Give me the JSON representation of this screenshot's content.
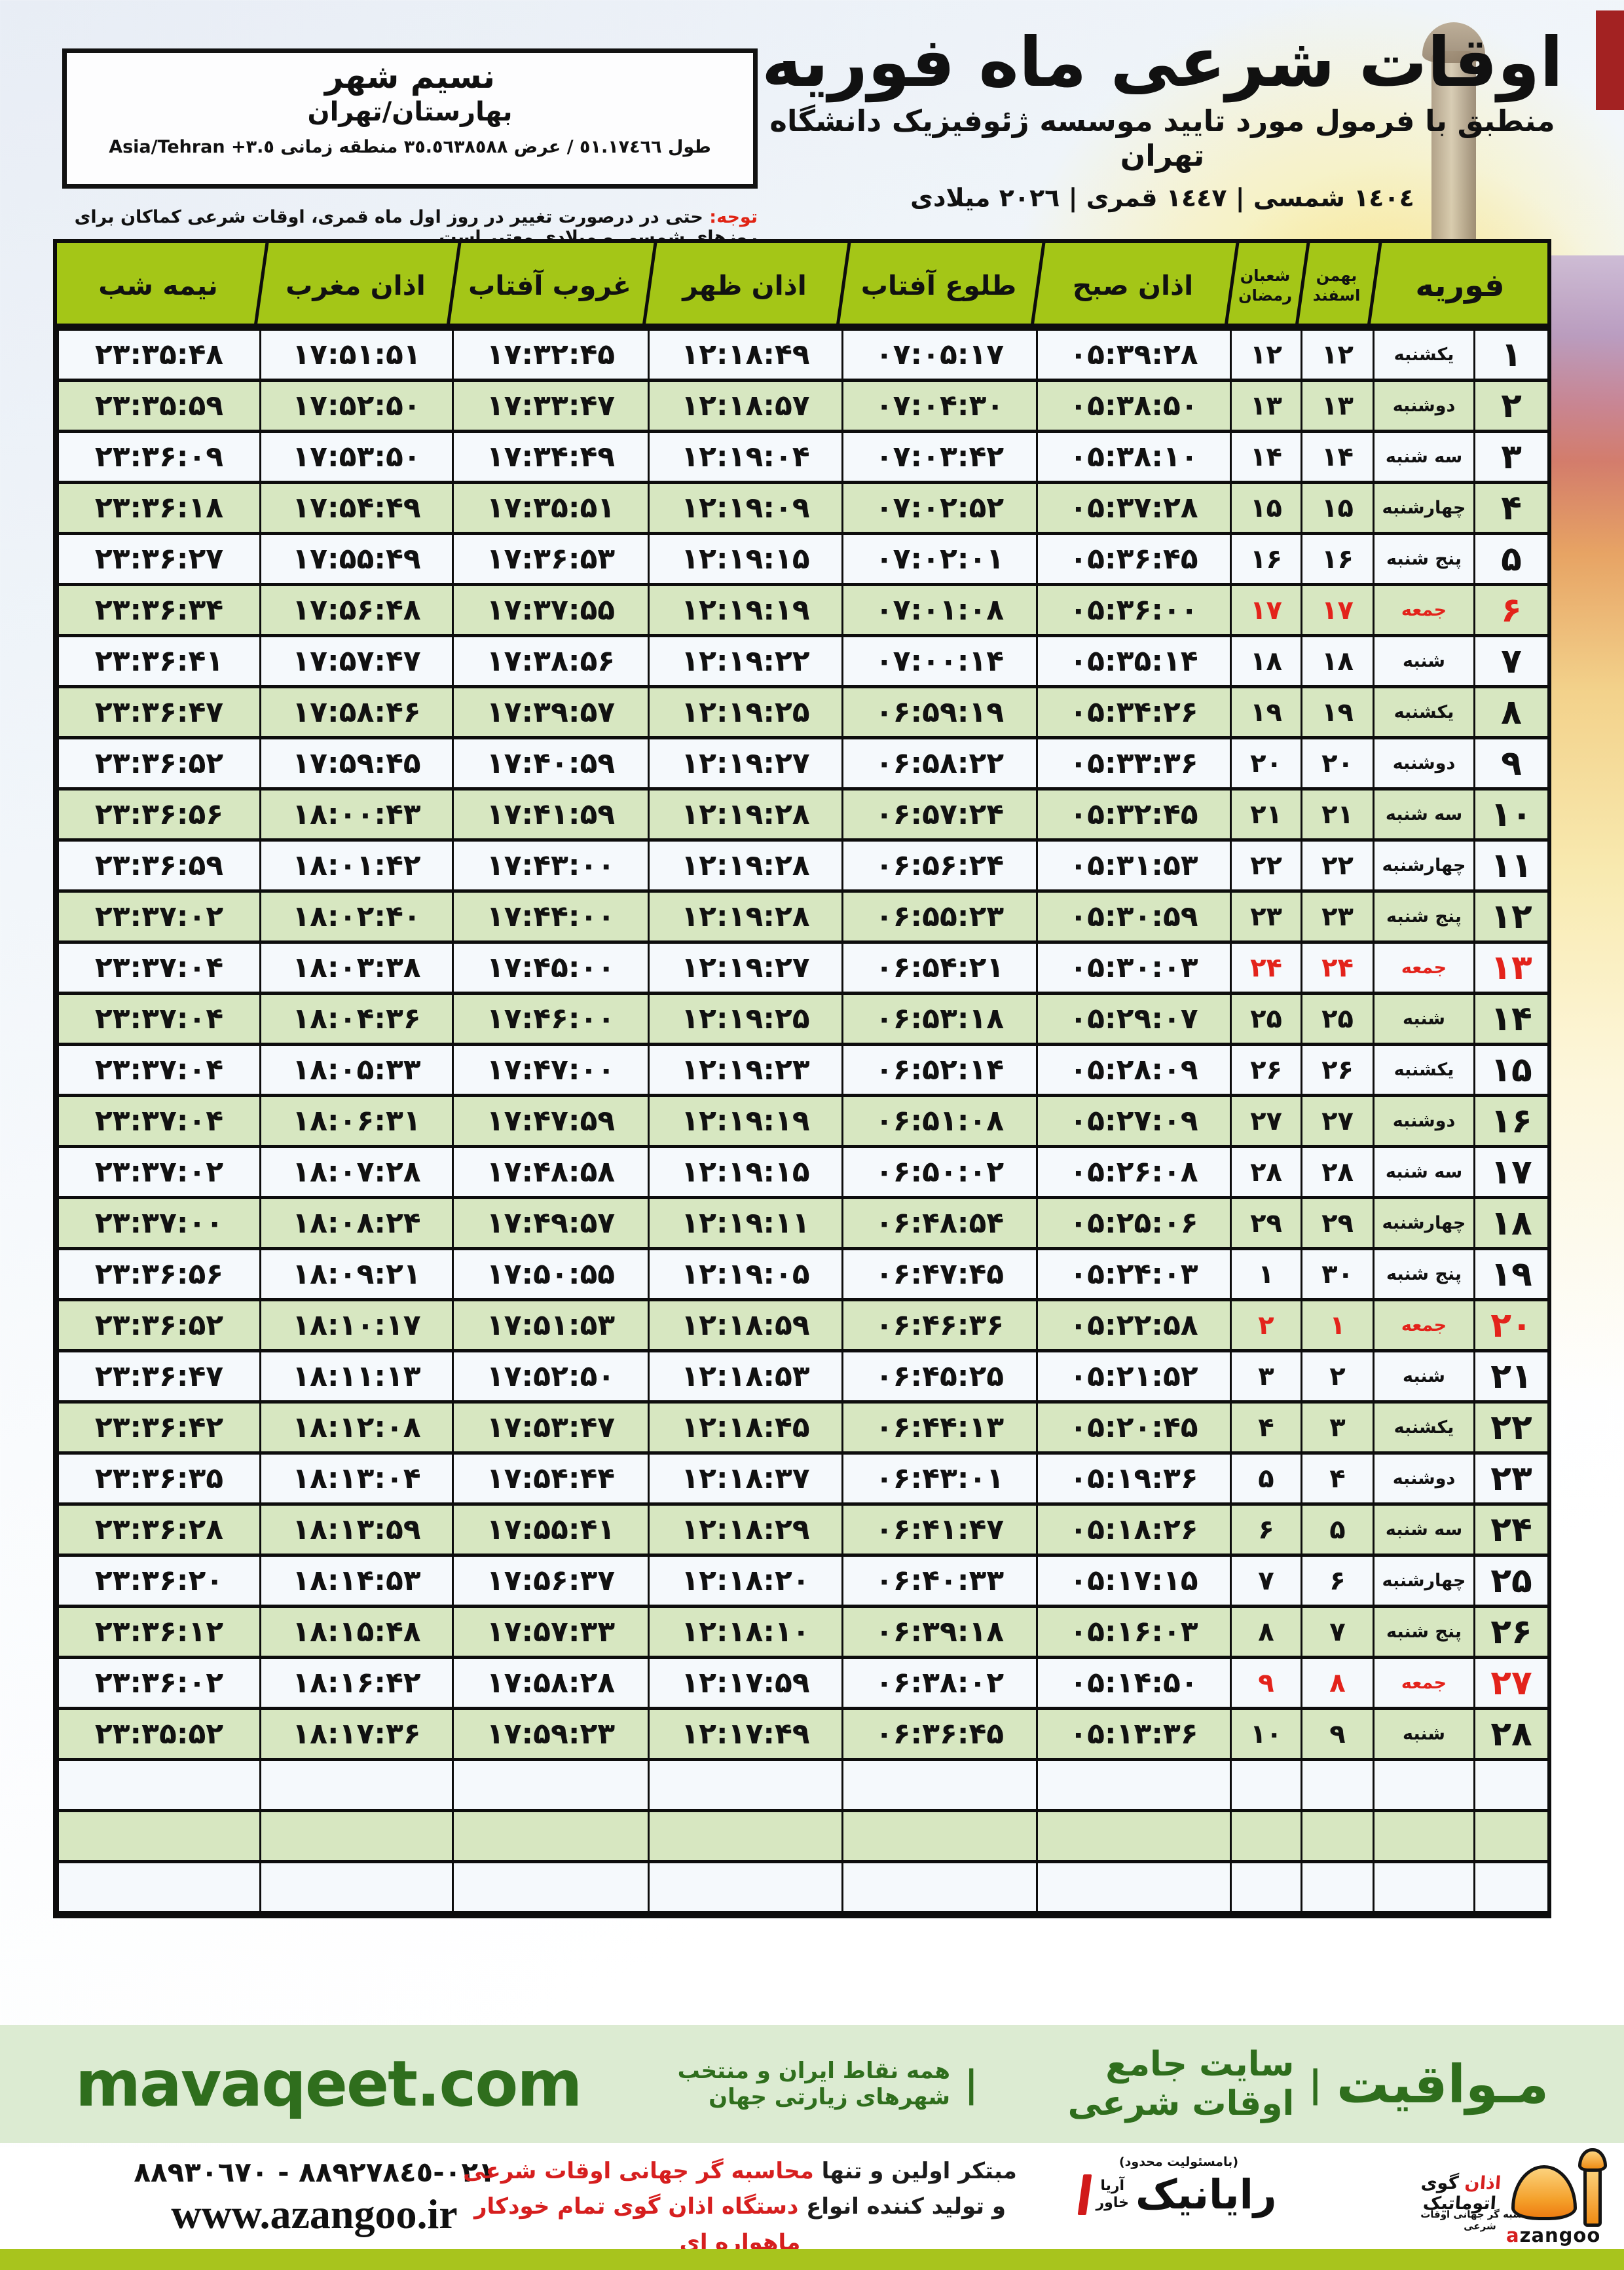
{
  "colors": {
    "header_green": "#a4c617",
    "row_green": "#d7e7c1",
    "row_light": "#f5f9fc",
    "friday_red": "#e3231b",
    "note_red": "#e02414",
    "banner_bg": "#dcebd2",
    "banner_text": "#2f6e1d",
    "bar_green": "#a8c41d",
    "logo_orange": "#f49a1f"
  },
  "location_box": {
    "city": "نسیم شهر",
    "region": "بهارستان/تهران",
    "coords": "طول ٥١.١٧٤٦٦ / عرض ٣٥.٥٦٣٨٥٨٨ منطقه زمانی ٣.٥+ Asia/Tehran"
  },
  "note": {
    "label": "توجه:",
    "text": " حتی در درصورت تغییر در روز اول ماه قمری، اوقات شرعی کماکان برای روزهای شمسی و میلادی معتبر است."
  },
  "title": {
    "main": "اوقات شرعی ماه فوریه",
    "subtitle": "منطبق با فرمول مورد تایید موسسه ژئوفیزیک دانشگاه تهران",
    "dates": "١٤٠٤ شمسی | ١٤٤٧ قمری | ٢٠٢٦ میلادی"
  },
  "table": {
    "headers": {
      "midnight": "نیمه شب",
      "maghrib": "اذان مغرب",
      "sunset": "غروب آفتاب",
      "zohr": "اذان ظهر",
      "sunrise": "طلوع آفتاب",
      "sobh": "اذان صبح",
      "hijri_top": "شعبان",
      "hijri_bottom": "رمضان",
      "jalali_top": "بهمن",
      "jalali_bottom": "اسفند",
      "feb": "فوریه"
    },
    "rows": [
      [
        "۱",
        "یکشنبه",
        "۱۲",
        "۱۲",
        "۰۵:۳۹:۲۸",
        "۰۷:۰۵:۱۷",
        "۱۲:۱۸:۴۹",
        "۱۷:۳۲:۴۵",
        "۱۷:۵۱:۵۱",
        "۲۳:۳۵:۴۸",
        0
      ],
      [
        "۲",
        "دوشنبه",
        "۱۳",
        "۱۳",
        "۰۵:۳۸:۵۰",
        "۰۷:۰۴:۳۰",
        "۱۲:۱۸:۵۷",
        "۱۷:۳۳:۴۷",
        "۱۷:۵۲:۵۰",
        "۲۳:۳۵:۵۹",
        0
      ],
      [
        "۳",
        "سه شنبه",
        "۱۴",
        "۱۴",
        "۰۵:۳۸:۱۰",
        "۰۷:۰۳:۴۲",
        "۱۲:۱۹:۰۴",
        "۱۷:۳۴:۴۹",
        "۱۷:۵۳:۵۰",
        "۲۳:۳۶:۰۹",
        0
      ],
      [
        "۴",
        "چهارشنبه",
        "۱۵",
        "۱۵",
        "۰۵:۳۷:۲۸",
        "۰۷:۰۲:۵۲",
        "۱۲:۱۹:۰۹",
        "۱۷:۳۵:۵۱",
        "۱۷:۵۴:۴۹",
        "۲۳:۳۶:۱۸",
        0
      ],
      [
        "۵",
        "پنج شنبه",
        "۱۶",
        "۱۶",
        "۰۵:۳۶:۴۵",
        "۰۷:۰۲:۰۱",
        "۱۲:۱۹:۱۵",
        "۱۷:۳۶:۵۳",
        "۱۷:۵۵:۴۹",
        "۲۳:۳۶:۲۷",
        0
      ],
      [
        "۶",
        "جمعه",
        "۱۷",
        "۱۷",
        "۰۵:۳۶:۰۰",
        "۰۷:۰۱:۰۸",
        "۱۲:۱۹:۱۹",
        "۱۷:۳۷:۵۵",
        "۱۷:۵۶:۴۸",
        "۲۳:۳۶:۳۴",
        1
      ],
      [
        "۷",
        "شنبه",
        "۱۸",
        "۱۸",
        "۰۵:۳۵:۱۴",
        "۰۷:۰۰:۱۴",
        "۱۲:۱۹:۲۲",
        "۱۷:۳۸:۵۶",
        "۱۷:۵۷:۴۷",
        "۲۳:۳۶:۴۱",
        0
      ],
      [
        "۸",
        "یکشنبه",
        "۱۹",
        "۱۹",
        "۰۵:۳۴:۲۶",
        "۰۶:۵۹:۱۹",
        "۱۲:۱۹:۲۵",
        "۱۷:۳۹:۵۷",
        "۱۷:۵۸:۴۶",
        "۲۳:۳۶:۴۷",
        0
      ],
      [
        "۹",
        "دوشنبه",
        "۲۰",
        "۲۰",
        "۰۵:۳۳:۳۶",
        "۰۶:۵۸:۲۲",
        "۱۲:۱۹:۲۷",
        "۱۷:۴۰:۵۹",
        "۱۷:۵۹:۴۵",
        "۲۳:۳۶:۵۲",
        0
      ],
      [
        "۱۰",
        "سه شنبه",
        "۲۱",
        "۲۱",
        "۰۵:۳۲:۴۵",
        "۰۶:۵۷:۲۴",
        "۱۲:۱۹:۲۸",
        "۱۷:۴۱:۵۹",
        "۱۸:۰۰:۴۳",
        "۲۳:۳۶:۵۶",
        0
      ],
      [
        "۱۱",
        "چهارشنبه",
        "۲۲",
        "۲۲",
        "۰۵:۳۱:۵۳",
        "۰۶:۵۶:۲۴",
        "۱۲:۱۹:۲۸",
        "۱۷:۴۳:۰۰",
        "۱۸:۰۱:۴۲",
        "۲۳:۳۶:۵۹",
        0
      ],
      [
        "۱۲",
        "پنج شنبه",
        "۲۳",
        "۲۳",
        "۰۵:۳۰:۵۹",
        "۰۶:۵۵:۲۳",
        "۱۲:۱۹:۲۸",
        "۱۷:۴۴:۰۰",
        "۱۸:۰۲:۴۰",
        "۲۳:۳۷:۰۲",
        0
      ],
      [
        "۱۳",
        "جمعه",
        "۲۴",
        "۲۴",
        "۰۵:۳۰:۰۳",
        "۰۶:۵۴:۲۱",
        "۱۲:۱۹:۲۷",
        "۱۷:۴۵:۰۰",
        "۱۸:۰۳:۳۸",
        "۲۳:۳۷:۰۴",
        1
      ],
      [
        "۱۴",
        "شنبه",
        "۲۵",
        "۲۵",
        "۰۵:۲۹:۰۷",
        "۰۶:۵۳:۱۸",
        "۱۲:۱۹:۲۵",
        "۱۷:۴۶:۰۰",
        "۱۸:۰۴:۳۶",
        "۲۳:۳۷:۰۴",
        0
      ],
      [
        "۱۵",
        "یکشنبه",
        "۲۶",
        "۲۶",
        "۰۵:۲۸:۰۹",
        "۰۶:۵۲:۱۴",
        "۱۲:۱۹:۲۳",
        "۱۷:۴۷:۰۰",
        "۱۸:۰۵:۳۳",
        "۲۳:۳۷:۰۴",
        0
      ],
      [
        "۱۶",
        "دوشنبه",
        "۲۷",
        "۲۷",
        "۰۵:۲۷:۰۹",
        "۰۶:۵۱:۰۸",
        "۱۲:۱۹:۱۹",
        "۱۷:۴۷:۵۹",
        "۱۸:۰۶:۳۱",
        "۲۳:۳۷:۰۴",
        0
      ],
      [
        "۱۷",
        "سه شنبه",
        "۲۸",
        "۲۸",
        "۰۵:۲۶:۰۸",
        "۰۶:۵۰:۰۲",
        "۱۲:۱۹:۱۵",
        "۱۷:۴۸:۵۸",
        "۱۸:۰۷:۲۸",
        "۲۳:۳۷:۰۲",
        0
      ],
      [
        "۱۸",
        "چهارشنبه",
        "۲۹",
        "۲۹",
        "۰۵:۲۵:۰۶",
        "۰۶:۴۸:۵۴",
        "۱۲:۱۹:۱۱",
        "۱۷:۴۹:۵۷",
        "۱۸:۰۸:۲۴",
        "۲۳:۳۷:۰۰",
        0
      ],
      [
        "۱۹",
        "پنج شنبه",
        "۳۰",
        "۱",
        "۰۵:۲۴:۰۳",
        "۰۶:۴۷:۴۵",
        "۱۲:۱۹:۰۵",
        "۱۷:۵۰:۵۵",
        "۱۸:۰۹:۲۱",
        "۲۳:۳۶:۵۶",
        0
      ],
      [
        "۲۰",
        "جمعه",
        "۱",
        "۲",
        "۰۵:۲۲:۵۸",
        "۰۶:۴۶:۳۶",
        "۱۲:۱۸:۵۹",
        "۱۷:۵۱:۵۳",
        "۱۸:۱۰:۱۷",
        "۲۳:۳۶:۵۲",
        1
      ],
      [
        "۲۱",
        "شنبه",
        "۲",
        "۳",
        "۰۵:۲۱:۵۲",
        "۰۶:۴۵:۲۵",
        "۱۲:۱۸:۵۳",
        "۱۷:۵۲:۵۰",
        "۱۸:۱۱:۱۳",
        "۲۳:۳۶:۴۷",
        0
      ],
      [
        "۲۲",
        "یکشنبه",
        "۳",
        "۴",
        "۰۵:۲۰:۴۵",
        "۰۶:۴۴:۱۳",
        "۱۲:۱۸:۴۵",
        "۱۷:۵۳:۴۷",
        "۱۸:۱۲:۰۸",
        "۲۳:۳۶:۴۲",
        0
      ],
      [
        "۲۳",
        "دوشنبه",
        "۴",
        "۵",
        "۰۵:۱۹:۳۶",
        "۰۶:۴۳:۰۱",
        "۱۲:۱۸:۳۷",
        "۱۷:۵۴:۴۴",
        "۱۸:۱۳:۰۴",
        "۲۳:۳۶:۳۵",
        0
      ],
      [
        "۲۴",
        "سه شنبه",
        "۵",
        "۶",
        "۰۵:۱۸:۲۶",
        "۰۶:۴۱:۴۷",
        "۱۲:۱۸:۲۹",
        "۱۷:۵۵:۴۱",
        "۱۸:۱۳:۵۹",
        "۲۳:۳۶:۲۸",
        0
      ],
      [
        "۲۵",
        "چهارشنبه",
        "۶",
        "۷",
        "۰۵:۱۷:۱۵",
        "۰۶:۴۰:۳۳",
        "۱۲:۱۸:۲۰",
        "۱۷:۵۶:۳۷",
        "۱۸:۱۴:۵۳",
        "۲۳:۳۶:۲۰",
        0
      ],
      [
        "۲۶",
        "پنج شنبه",
        "۷",
        "۸",
        "۰۵:۱۶:۰۳",
        "۰۶:۳۹:۱۸",
        "۱۲:۱۸:۱۰",
        "۱۷:۵۷:۳۳",
        "۱۸:۱۵:۴۸",
        "۲۳:۳۶:۱۲",
        0
      ],
      [
        "۲۷",
        "جمعه",
        "۸",
        "۹",
        "۰۵:۱۴:۵۰",
        "۰۶:۳۸:۰۲",
        "۱۲:۱۷:۵۹",
        "۱۷:۵۸:۲۸",
        "۱۸:۱۶:۴۲",
        "۲۳:۳۶:۰۲",
        1
      ],
      [
        "۲۸",
        "شنبه",
        "۹",
        "۱۰",
        "۰۵:۱۳:۳۶",
        "۰۶:۳۶:۴۵",
        "۱۲:۱۷:۴۹",
        "۱۷:۵۹:۲۳",
        "۱۸:۱۷:۳۶",
        "۲۳:۳۵:۵۲",
        0
      ]
    ],
    "empty_rows": 3
  },
  "banner": {
    "site": "mavaqeet.com",
    "brand": "مـواقیت",
    "sep": "|",
    "desc1": "سایت جامع اوقات شرعی",
    "desc2": "همه نقاط ایران و منتخب شهرهای زیارتی جهان"
  },
  "footer": {
    "phones": "٠٢١-٨٨٩٢٧٨٤٥ - ٨٨٩٣٠٦٧٠",
    "website": "www.azangoo.ir",
    "promo_line1_black": "مبتکر اولین و تنها ",
    "promo_line1_red": "محاسبه گر جهانی اوقات شرعی",
    "promo_line2_black": "و تولید کننده انواع ",
    "promo_line2_red": "دستگاه اذان گوی تمام خودکار ماهواره ای",
    "rayanik_note": "(بامسئولیت محدود)",
    "rayanik_name": "رایانیک",
    "rayanik_sub_top": "آریا",
    "rayanik_sub_bottom": "خاور",
    "azangoo_fa_red": "اذان",
    "azangoo_fa_black": " گوی اتوماتیک",
    "azangoo_sub": "محاسبه گر جهانی اوقات شرعی",
    "azangoo_en_red": "a",
    "azangoo_en_black": "zangoo"
  }
}
